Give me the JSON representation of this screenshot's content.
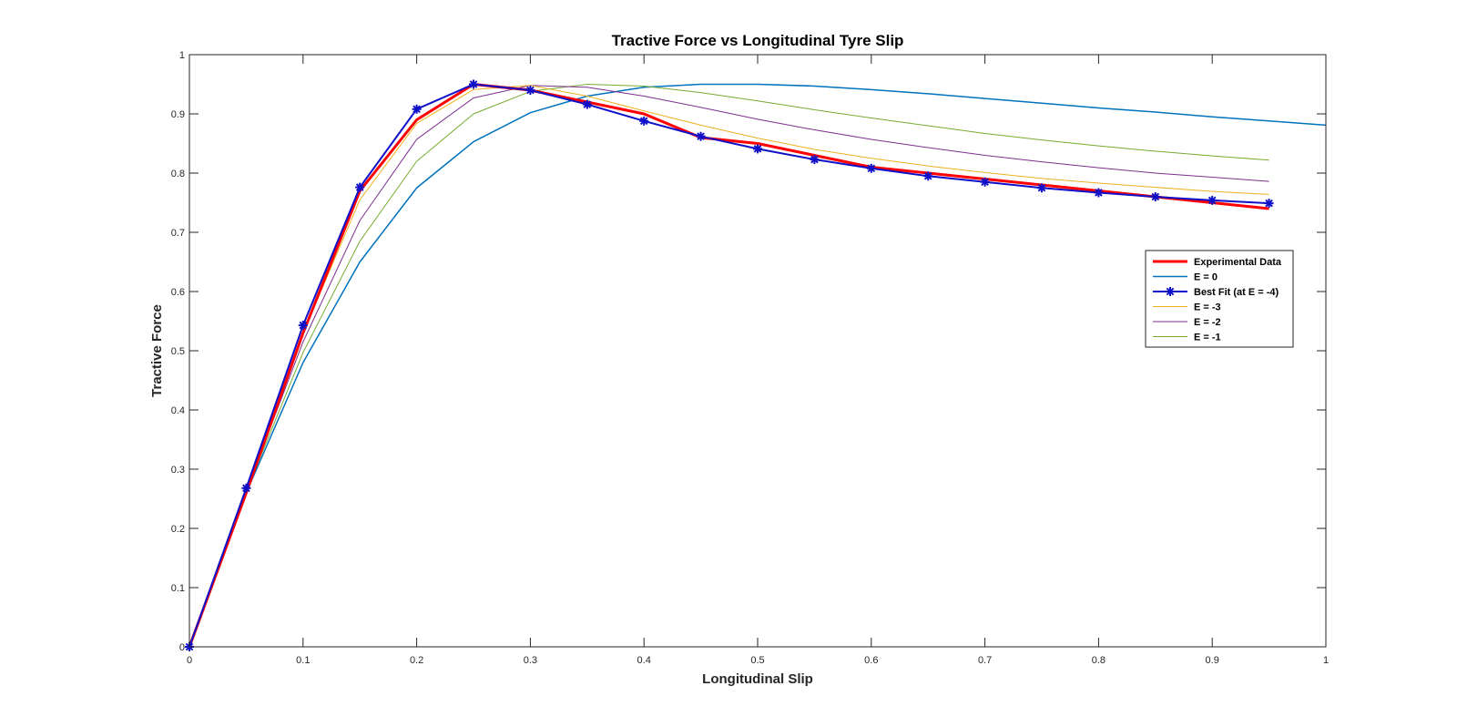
{
  "figure": {
    "title": "Tractive Force vs Longitudinal Tyre Slip"
  },
  "chart_data": {
    "type": "line",
    "title": "Tractive Force vs Longitudinal Tyre Slip",
    "xlabel": "Longitudinal Slip",
    "ylabel": "Tractive Force",
    "xlim": [
      0,
      1
    ],
    "ylim": [
      0,
      1
    ],
    "xticks": [
      "0",
      "0.1",
      "0.2",
      "0.3",
      "0.4",
      "0.5",
      "0.6",
      "0.7",
      "0.8",
      "0.9",
      "1"
    ],
    "yticks": [
      "0",
      "0.1",
      "0.2",
      "0.3",
      "0.4",
      "0.5",
      "0.6",
      "0.7",
      "0.8",
      "0.9",
      "1"
    ],
    "grid": false,
    "legend_placement": "right",
    "series": [
      {
        "name": "Experimental Data",
        "color": "#ff0000",
        "linewidth": 3,
        "marker": "none",
        "x": [
          0,
          0.05,
          0.1,
          0.15,
          0.2,
          0.25,
          0.3,
          0.35,
          0.4,
          0.45,
          0.5,
          0.55,
          0.6,
          0.65,
          0.7,
          0.75,
          0.8,
          0.85,
          0.9,
          0.95
        ],
        "y": [
          0,
          0.26,
          0.53,
          0.77,
          0.89,
          0.95,
          0.94,
          0.92,
          0.9,
          0.86,
          0.85,
          0.83,
          0.81,
          0.8,
          0.79,
          0.78,
          0.77,
          0.76,
          0.75,
          0.74
        ]
      },
      {
        "name": "E = 0",
        "color": "#0072bd",
        "linewidth": 1.5,
        "marker": "none",
        "x": [
          0,
          0.05,
          0.1,
          0.15,
          0.2,
          0.25,
          0.3,
          0.35,
          0.4,
          0.45,
          0.5,
          0.55,
          0.6,
          0.65,
          0.7,
          0.75,
          0.8,
          0.85,
          0.9,
          0.95,
          1.0
        ],
        "y": [
          0,
          0.26,
          0.48,
          0.65,
          0.775,
          0.853,
          0.902,
          0.93,
          0.945,
          0.95,
          0.95,
          0.947,
          0.941,
          0.934,
          0.926,
          0.918,
          0.91,
          0.903,
          0.895,
          0.888,
          0.881
        ]
      },
      {
        "name": "Best Fit (at E = -4)",
        "color": "#1010c8",
        "linewidth": 2,
        "marker": "asterisk",
        "x": [
          0,
          0.05,
          0.1,
          0.15,
          0.2,
          0.25,
          0.3,
          0.35,
          0.4,
          0.45,
          0.5,
          0.55,
          0.6,
          0.65,
          0.7,
          0.75,
          0.8,
          0.85,
          0.9,
          0.95
        ],
        "y": [
          0,
          0.268,
          0.543,
          0.776,
          0.908,
          0.95,
          0.94,
          0.916,
          0.888,
          0.862,
          0.841,
          0.823,
          0.808,
          0.795,
          0.785,
          0.775,
          0.767,
          0.76,
          0.754,
          0.749
        ]
      },
      {
        "name": "E = -3",
        "color": "#edb120",
        "linewidth": 1,
        "marker": "none",
        "x": [
          0,
          0.05,
          0.1,
          0.15,
          0.2,
          0.25,
          0.3,
          0.35,
          0.4,
          0.45,
          0.5,
          0.55,
          0.6,
          0.65,
          0.7,
          0.75,
          0.8,
          0.85,
          0.9,
          0.95
        ],
        "y": [
          0,
          0.266,
          0.53,
          0.755,
          0.884,
          0.941,
          0.948,
          0.93,
          0.905,
          0.881,
          0.859,
          0.84,
          0.825,
          0.812,
          0.801,
          0.791,
          0.783,
          0.776,
          0.769,
          0.764
        ]
      },
      {
        "name": "E = -2",
        "color": "#7e2f8e",
        "linewidth": 1,
        "marker": "none",
        "x": [
          0,
          0.05,
          0.1,
          0.15,
          0.2,
          0.25,
          0.3,
          0.35,
          0.4,
          0.45,
          0.5,
          0.55,
          0.6,
          0.65,
          0.7,
          0.75,
          0.8,
          0.85,
          0.9,
          0.95
        ],
        "y": [
          0,
          0.264,
          0.515,
          0.72,
          0.857,
          0.927,
          0.948,
          0.945,
          0.93,
          0.911,
          0.891,
          0.873,
          0.857,
          0.843,
          0.83,
          0.819,
          0.809,
          0.8,
          0.793,
          0.786
        ]
      },
      {
        "name": "E = -1",
        "color": "#77ac30",
        "linewidth": 1,
        "marker": "none",
        "x": [
          0,
          0.05,
          0.1,
          0.15,
          0.2,
          0.25,
          0.3,
          0.35,
          0.4,
          0.45,
          0.5,
          0.55,
          0.6,
          0.65,
          0.7,
          0.75,
          0.8,
          0.85,
          0.9,
          0.95
        ],
        "y": [
          0,
          0.262,
          0.497,
          0.685,
          0.82,
          0.9,
          0.938,
          0.95,
          0.947,
          0.936,
          0.922,
          0.907,
          0.893,
          0.88,
          0.867,
          0.856,
          0.846,
          0.837,
          0.829,
          0.822
        ]
      }
    ]
  }
}
